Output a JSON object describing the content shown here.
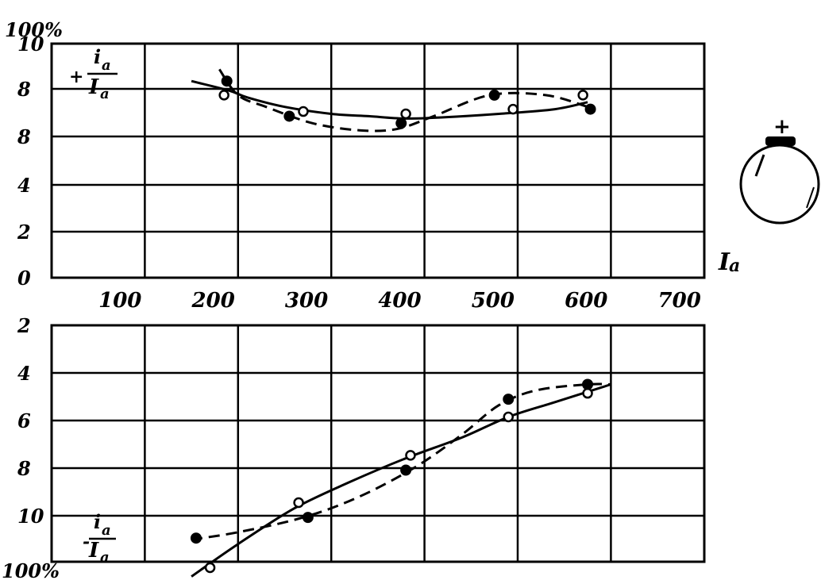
{
  "chart_data": [
    {
      "type": "line",
      "panel": "upper",
      "y_label_sign": "+",
      "y_label_num": "i",
      "y_label_num_sub": "a",
      "y_label_den": "I",
      "y_label_den_sub": "a",
      "y_unit": "100%",
      "y_ticks": [
        "10",
        "8",
        "8",
        "4",
        "2",
        "0"
      ],
      "ylim": [
        0,
        10
      ],
      "x_label": "I",
      "x_label_sub": "a",
      "x_ticks": [
        "100",
        "200",
        "300",
        "400",
        "500",
        "600",
        "700"
      ],
      "xlim": [
        0,
        700
      ],
      "grid": true,
      "series": [
        {
          "marker": "filled",
          "line": "solid",
          "values": [
            [
              188,
              8.4
            ],
            [
              255,
              6.9
            ],
            [
              375,
              6.6
            ],
            [
              578,
              7.2
            ]
          ],
          "curve": [
            [
              150,
              8.4
            ],
            [
              190,
              8.0
            ],
            [
              210,
              7.7
            ],
            [
              250,
              7.3
            ],
            [
              300,
              7.0
            ],
            [
              340,
              6.9
            ],
            [
              380,
              6.8
            ],
            [
              420,
              6.85
            ],
            [
              480,
              7.0
            ],
            [
              540,
              7.2
            ],
            [
              575,
              7.5
            ]
          ]
        },
        {
          "marker": "open",
          "line": "dashed",
          "values": [
            [
              185,
              7.8
            ],
            [
              270,
              7.1
            ],
            [
              380,
              7.0
            ],
            [
              495,
              7.2
            ],
            [
              570,
              7.8
            ]
          ],
          "curve": [
            [
              180,
              8.9
            ],
            [
              200,
              7.8
            ],
            [
              230,
              7.3
            ],
            [
              280,
              6.6
            ],
            [
              330,
              6.3
            ],
            [
              370,
              6.35
            ],
            [
              410,
              6.9
            ],
            [
              470,
              7.8
            ],
            [
              530,
              7.8
            ],
            [
              575,
              7.3
            ]
          ]
        },
        {
          "marker": "filled",
          "line": "dashed",
          "values": [
            [
              475,
              7.8
            ]
          ],
          "curve": []
        }
      ]
    },
    {
      "type": "line",
      "panel": "lower",
      "y_label_sign": "-",
      "y_label_num": "i",
      "y_label_num_sub": "a",
      "y_label_den": "I",
      "y_label_den_sub": "a",
      "y_unit": "100%",
      "y_ticks": [
        "2",
        "4",
        "6",
        "8",
        "10"
      ],
      "ylim": [
        10,
        2
      ],
      "x_ticks": [
        "100",
        "200",
        "300",
        "400",
        "500",
        "600",
        "700"
      ],
      "xlim": [
        0,
        700
      ],
      "grid": true,
      "series": [
        {
          "marker": "open",
          "line": "solid",
          "values": [
            [
              170,
              10.2
            ],
            [
              265,
              8.0
            ],
            [
              385,
              6.4
            ],
            [
              490,
              5.1
            ],
            [
              575,
              4.3
            ]
          ],
          "curve": [
            [
              150,
              10.5
            ],
            [
              200,
              9.4
            ],
            [
              260,
              8.2
            ],
            [
              320,
              7.3
            ],
            [
              380,
              6.5
            ],
            [
              440,
              5.8
            ],
            [
              490,
              5.1
            ],
            [
              540,
              4.6
            ],
            [
              600,
              4.0
            ]
          ]
        },
        {
          "marker": "filled",
          "line": "dashed",
          "values": [
            [
              155,
              9.2
            ],
            [
              275,
              8.5
            ],
            [
              380,
              6.9
            ],
            [
              490,
              4.5
            ],
            [
              575,
              4.0
            ]
          ],
          "curve": [
            [
              150,
              9.25
            ],
            [
              200,
              9.0
            ],
            [
              270,
              8.5
            ],
            [
              330,
              7.8
            ],
            [
              390,
              6.8
            ],
            [
              440,
              5.7
            ],
            [
              480,
              4.7
            ],
            [
              520,
              4.2
            ],
            [
              575,
              4.0
            ],
            [
              600,
              4.0
            ]
          ]
        }
      ]
    }
  ],
  "inset": {
    "sign": "+",
    "icon": "sphere-with-positive-pole-icon"
  }
}
